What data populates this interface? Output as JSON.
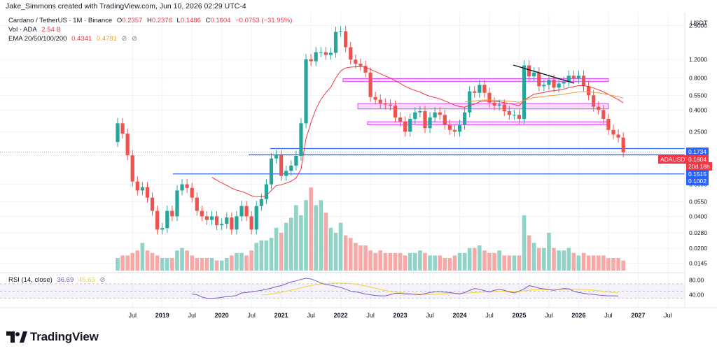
{
  "header": {
    "caption": "Jake_Simmons created with TradingView.com, Jun 10, 2026 02:29 UTC-4",
    "currency": "USDT"
  },
  "legend": {
    "symbol": "Cardano / TetherUS · 1M · Binance",
    "o_label": "O",
    "o": "0.2357",
    "h_label": "H",
    "h": "0.2376",
    "l_label": "L",
    "l": "0.1486",
    "c_label": "C",
    "c": "0.1604",
    "change": "−0.0753 (−31.95%)",
    "vol_label": "Vol · ADA",
    "vol_value": "2.54 B",
    "ema_label": "EMA 20/50/100/200",
    "ema_1": "0.4341",
    "ema_2": "0.4781",
    "rsi_label": "RSI (14, close)",
    "rsi_1": "36.69",
    "rsi_2": "45.63"
  },
  "price_tags": {
    "t1": "0.1734",
    "symbol": "ADAUSDT",
    "last": "0.1604",
    "countdown": "20d 18h",
    "t2": "0.1515",
    "t3": "0.1002"
  },
  "colors": {
    "up": "#26a69a",
    "down": "#ef5350",
    "up_vol": "#92d3c7",
    "down_vol": "#f7a9a7",
    "ema": "#f23645",
    "ema_slow": "#f0a030",
    "support": "#2962ff",
    "zone": "#e040fb",
    "rsi": "#7e57c2",
    "rsi_ma": "#f0d437"
  },
  "footer": {
    "brand": "TradingView"
  },
  "chart_data": {
    "type": "candlestick",
    "scale": "log",
    "ylim": [
      0.0118,
      3.3
    ],
    "y_ticks": [
      "2.5000",
      "1.2000",
      "0.8000",
      "0.5500",
      "0.4000",
      "0.2500",
      "0.0800",
      "0.0550",
      "0.0400",
      "0.0280",
      "0.0200",
      "0.0145"
    ],
    "x_ticks": [
      {
        "label": "Jul",
        "year": false
      },
      {
        "label": "2019",
        "year": true
      },
      {
        "label": "Jul",
        "year": false
      },
      {
        "label": "2020",
        "year": true
      },
      {
        "label": "Jul",
        "year": false
      },
      {
        "label": "2021",
        "year": true
      },
      {
        "label": "Jul",
        "year": false
      },
      {
        "label": "2022",
        "year": true
      },
      {
        "label": "Jul",
        "year": false
      },
      {
        "label": "2023",
        "year": true
      },
      {
        "label": "Jul",
        "year": false
      },
      {
        "label": "2024",
        "year": true
      },
      {
        "label": "Jul",
        "year": false
      },
      {
        "label": "2025",
        "year": true
      },
      {
        "label": "Jul",
        "year": false
      },
      {
        "label": "2026",
        "year": true
      },
      {
        "label": "Jul",
        "year": false
      },
      {
        "label": "2027",
        "year": true
      },
      {
        "label": "Jul",
        "year": false
      }
    ],
    "first_month": "2018-04",
    "closes": [
      0.3,
      0.24,
      0.15,
      0.085,
      0.07,
      0.075,
      0.06,
      0.045,
      0.03,
      0.031,
      0.045,
      0.04,
      0.07,
      0.08,
      0.074,
      0.06,
      0.045,
      0.04,
      0.037,
      0.04,
      0.033,
      0.034,
      0.039,
      0.03,
      0.04,
      0.05,
      0.04,
      0.03,
      0.05,
      0.058,
      0.08,
      0.14,
      0.15,
      0.096,
      0.107,
      0.12,
      0.148,
      0.3,
      1.2,
      1.15,
      1.4,
      1.4,
      1.32,
      1.38,
      2.17,
      2.2,
      1.56,
      1.19,
      1.09,
      1.04,
      0.9,
      0.53,
      0.5,
      0.46,
      0.45,
      0.44,
      0.34,
      0.31,
      0.25,
      0.33,
      0.38,
      0.39,
      0.27,
      0.34,
      0.38,
      0.36,
      0.29,
      0.26,
      0.25,
      0.29,
      0.38,
      0.6,
      0.58,
      0.69,
      0.58,
      0.47,
      0.44,
      0.45,
      0.39,
      0.36,
      0.36,
      0.33,
      1.05,
      0.83,
      0.9,
      0.67,
      0.69,
      0.77,
      0.65,
      0.71,
      0.74,
      0.84,
      0.79,
      0.84,
      0.67,
      0.55,
      0.43,
      0.4,
      0.33,
      0.26,
      0.235,
      0.22,
      0.16
    ],
    "volume": [
      5,
      6,
      6,
      7,
      8,
      11,
      8,
      7,
      6,
      5,
      5,
      5,
      8,
      9,
      8,
      6,
      5,
      5,
      5,
      5,
      4,
      4,
      5,
      6,
      7,
      7,
      6,
      8,
      11,
      12,
      12,
      13,
      17,
      15,
      19,
      21,
      26,
      22,
      28,
      33,
      26,
      28,
      23,
      17,
      15,
      19,
      14,
      13,
      11,
      10,
      10,
      8,
      7,
      8,
      7,
      7,
      7,
      7,
      6,
      7,
      7,
      8,
      7,
      6,
      6,
      6,
      5,
      5,
      6,
      7,
      7,
      9,
      9,
      10,
      8,
      7,
      7,
      8,
      6,
      6,
      6,
      6,
      22,
      14,
      11,
      9,
      9,
      15,
      9,
      8,
      8,
      9,
      7,
      6,
      7,
      6,
      6,
      6,
      6,
      5,
      5,
      5,
      4
    ],
    "ema_fast": [
      0.45,
      0.4,
      0.33,
      0.27,
      0.22,
      0.19,
      0.17,
      0.15,
      0.13,
      0.115,
      0.105,
      0.095,
      0.09,
      0.085,
      0.085,
      0.085,
      0.085,
      0.085,
      0.08
    ],
    "rsi": [
      42,
      40,
      34,
      30,
      30,
      31,
      33,
      35,
      36,
      38,
      45,
      46,
      48,
      50,
      52,
      55,
      58,
      62,
      65,
      70,
      75,
      78,
      82,
      85,
      83,
      78,
      72,
      68,
      66,
      63,
      60,
      55,
      50,
      48,
      45,
      42,
      40,
      38,
      37,
      37,
      40,
      44,
      44,
      42,
      42,
      41,
      40,
      43,
      46,
      48,
      48,
      47,
      46,
      44,
      42,
      46,
      52,
      57,
      55,
      51,
      48,
      52,
      55,
      52,
      48,
      45,
      50,
      56,
      65,
      62,
      58,
      56,
      54,
      52,
      55,
      57,
      56,
      50,
      46,
      44,
      42,
      41,
      39,
      38,
      37,
      37,
      36.7
    ],
    "horizontal_levels": [
      0.1734,
      0.1515,
      0.1002
    ],
    "zones": [
      [
        0.74,
        0.79
      ],
      [
        0.41,
        0.46
      ],
      [
        0.29,
        0.31
      ]
    ]
  }
}
